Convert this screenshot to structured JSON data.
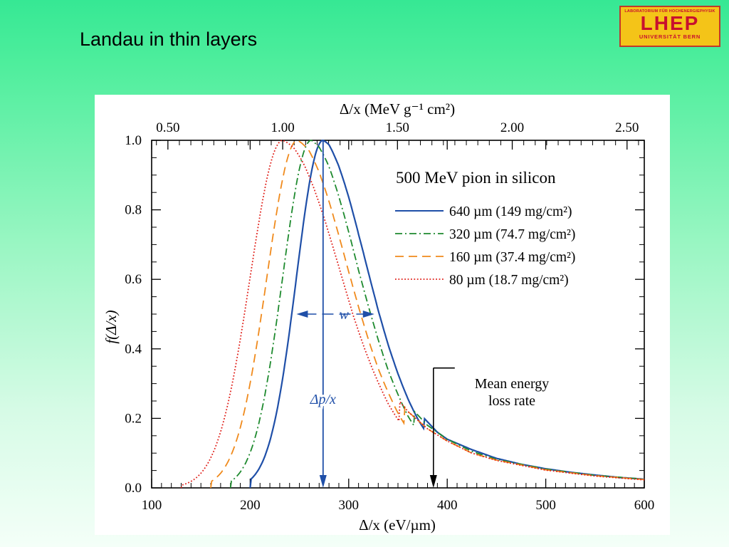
{
  "slide": {
    "title": "Landau in thin layers"
  },
  "logo": {
    "lab": "LABORATORIUM FÜR HOCHENERGIEPHYSIK",
    "name": "LHEP",
    "university": "UNIVERSITÄT BERN"
  },
  "chart_data": {
    "type": "line",
    "title": "500 MeV pion in silicon",
    "xlabel": "Δ/x   (eV/µm)",
    "x2label": "Δ/x   (MeV g⁻¹ cm²)",
    "ylabel": "f(Δ/x)",
    "xlim": [
      100,
      600
    ],
    "ylim": [
      0,
      1.0
    ],
    "x_ticks": [
      "100",
      "200",
      "300",
      "400",
      "500",
      "600"
    ],
    "y_ticks": [
      "0.0",
      "0.2",
      "0.4",
      "0.6",
      "0.8",
      "1.0"
    ],
    "x2_ticks": [
      {
        "label": "0.50",
        "at": 116.5
      },
      {
        "label": "1.00",
        "at": 233
      },
      {
        "label": "1.50",
        "at": 349.5
      },
      {
        "label": "2.00",
        "at": 466
      },
      {
        "label": "2.50",
        "at": 582.5
      }
    ],
    "legend_position": "top-right",
    "series": [
      {
        "name": "640 µm (149 mg/cm²)",
        "color": "#1f4fa8",
        "dash": "solid",
        "mp": 274,
        "wl": 27,
        "wr": 52,
        "x": [
          200,
          210,
          220,
          230,
          240,
          250,
          260,
          270,
          274,
          280,
          290,
          300,
          310,
          320,
          330,
          340,
          350,
          360,
          370,
          380,
          390,
          400,
          425,
          450,
          475,
          500,
          525,
          550,
          575,
          600
        ],
        "y": [
          0.0,
          0.005,
          0.03,
          0.13,
          0.36,
          0.64,
          0.87,
          0.99,
          1.0,
          0.98,
          0.89,
          0.78,
          0.66,
          0.55,
          0.45,
          0.37,
          0.31,
          0.26,
          0.22,
          0.19,
          0.16,
          0.14,
          0.11,
          0.085,
          0.068,
          0.055,
          0.045,
          0.037,
          0.03,
          0.025
        ]
      },
      {
        "name": "320 µm (74.7 mg/cm²)",
        "color": "#1e8a2e",
        "dash": "dashdot",
        "mp": 262,
        "wl": 29,
        "wr": 53,
        "x": [
          180,
          190,
          200,
          210,
          220,
          230,
          240,
          250,
          262,
          270,
          280,
          290,
          300,
          310,
          320,
          330,
          340,
          350,
          360,
          370,
          380,
          400,
          425,
          450,
          500,
          550,
          600
        ],
        "y": [
          0.0,
          0.01,
          0.05,
          0.17,
          0.38,
          0.62,
          0.83,
          0.96,
          1.0,
          0.97,
          0.9,
          0.8,
          0.69,
          0.58,
          0.49,
          0.41,
          0.34,
          0.29,
          0.24,
          0.21,
          0.18,
          0.14,
          0.105,
          0.082,
          0.054,
          0.036,
          0.025
        ]
      },
      {
        "name": "160 µm (37.4 mg/cm²)",
        "color": "#f08a1c",
        "dash": "dashed",
        "mp": 248,
        "wl": 31,
        "wr": 55,
        "x": [
          160,
          170,
          180,
          190,
          200,
          210,
          220,
          230,
          248,
          260,
          270,
          280,
          290,
          300,
          310,
          320,
          330,
          340,
          350,
          360,
          380,
          400,
          425,
          450,
          500,
          550,
          600
        ],
        "y": [
          0.0,
          0.01,
          0.05,
          0.16,
          0.36,
          0.59,
          0.79,
          0.93,
          1.0,
          0.96,
          0.89,
          0.8,
          0.7,
          0.6,
          0.51,
          0.43,
          0.36,
          0.31,
          0.26,
          0.22,
          0.17,
          0.135,
          0.1,
          0.08,
          0.052,
          0.035,
          0.024
        ]
      },
      {
        "name": "80 µm (18.7 mg/cm²)",
        "color": "#e0201a",
        "dash": "dotted",
        "mp": 233,
        "wl": 33,
        "wr": 60,
        "x": [
          130,
          140,
          150,
          160,
          170,
          180,
          190,
          200,
          210,
          220,
          233,
          245,
          255,
          265,
          275,
          285,
          295,
          305,
          315,
          325,
          340,
          360,
          380,
          400,
          425,
          450,
          500,
          550,
          600
        ],
        "y": [
          0.0,
          0.01,
          0.04,
          0.12,
          0.29,
          0.5,
          0.71,
          0.87,
          0.96,
          0.995,
          1.0,
          0.97,
          0.92,
          0.85,
          0.77,
          0.68,
          0.59,
          0.5,
          0.43,
          0.37,
          0.29,
          0.22,
          0.17,
          0.135,
          0.1,
          0.079,
          0.051,
          0.034,
          0.023
        ]
      }
    ],
    "annotations": {
      "width_label": "w",
      "width_at_y": 0.5,
      "width_from": 247,
      "width_to": 326,
      "most_probable_label": "Δp/x",
      "most_probable_x": 274,
      "mean_label_line1": "Mean energy",
      "mean_label_line2": "loss rate",
      "mean_x": 386
    }
  }
}
